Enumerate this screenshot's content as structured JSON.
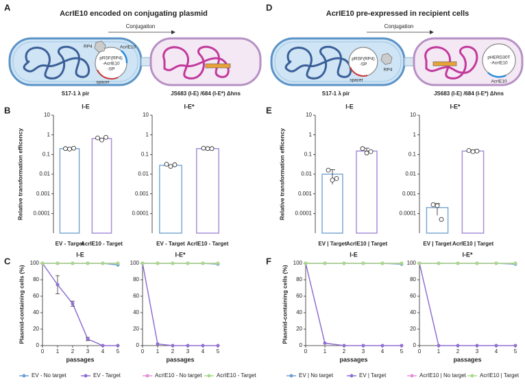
{
  "panels": [
    "A",
    "B",
    "C",
    "D",
    "E",
    "F"
  ],
  "diagrams": [
    {
      "title": "AcrIE10 encoded on conjugating plasmid",
      "arrow_label": "Conjugation",
      "donor": "S17-1 λ pir",
      "recipient": "JS683 (I-E) /684 (I-E*) Δhns",
      "helper": "RP4",
      "plasmid": [
        "pRSF(RP4)",
        "-AcrIE10",
        "-SP"
      ],
      "gene": "AcrIE10",
      "spacer": "spacer"
    },
    {
      "title": "AcrIE10 pre-expressed in recipient cells",
      "arrow_label": "Conjugation",
      "donor": "S17-1 λ pir",
      "recipient": "JS683 (I-E) /684 (I-E*) Δhns",
      "helper": "RP4",
      "plasmid": [
        "pRSF(RP4)",
        "-SP"
      ],
      "spacer": "spacer",
      "recipient_plasmid": [
        "pHERD30T",
        "-AcrIE10"
      ],
      "gene": "AcrIE10"
    }
  ],
  "chart_data": [
    {
      "type": "bar",
      "title": "I-E",
      "ylabel": "Relative transformation efficency",
      "log": true,
      "categories": [
        "EV - Target",
        "AcrIE10 - Target"
      ],
      "values": [
        0.2,
        0.65
      ],
      "points": [
        [
          0.2,
          0.19,
          0.21
        ],
        [
          0.7,
          0.55,
          0.75
        ]
      ],
      "colors": [
        "#7ba9d6",
        "#a68fd8"
      ],
      "ylim": [
        1e-05,
        10
      ],
      "yticks": [
        0.0001,
        0.001,
        0.01,
        0.1,
        1,
        10
      ]
    },
    {
      "type": "bar",
      "title": "I-E*",
      "log": true,
      "categories": [
        "EV - Target",
        "AcrIE10 - Target"
      ],
      "values": [
        0.028,
        0.2
      ],
      "points": [
        [
          0.032,
          0.025,
          0.03
        ],
        [
          0.21,
          0.2,
          0.2
        ]
      ],
      "colors": [
        "#7ba9d6",
        "#a68fd8"
      ],
      "ylim": [
        1e-05,
        10
      ],
      "yticks": [
        0.0001,
        0.001,
        0.01,
        0.1,
        1,
        10
      ]
    },
    {
      "type": "bar",
      "title": "I-E",
      "ylabel": "Relative transformation efficency",
      "log": true,
      "categories": [
        "EV | Target",
        "AcrIE10 | Target"
      ],
      "values": [
        0.01,
        0.15
      ],
      "errors": [
        0.007,
        0.06
      ],
      "points": [
        [
          0.016,
          0.005,
          0.006
        ],
        [
          0.2,
          0.12,
          0.14
        ]
      ],
      "colors": [
        "#7ba9d6",
        "#a68fd8"
      ],
      "ylim": [
        1e-05,
        10
      ],
      "yticks": [
        0.0001,
        0.001,
        0.01,
        0.1,
        1,
        10
      ]
    },
    {
      "type": "bar",
      "title": "I-E*",
      "log": true,
      "categories": [
        "EV | Target",
        "AcrIE10 | Target"
      ],
      "values": [
        0.0002,
        0.15
      ],
      "errors": [
        0.00012,
        0.02
      ],
      "points": [
        [
          0.00028,
          0.00025,
          5e-05
        ],
        [
          0.16,
          0.14,
          0.15
        ]
      ],
      "colors": [
        "#7ba9d6",
        "#a68fd8"
      ],
      "ylim": [
        1e-05,
        10
      ],
      "yticks": [
        0.0001,
        0.001,
        0.01,
        0.1,
        1,
        10
      ]
    },
    {
      "type": "line",
      "title": "I-E",
      "ylabel": "Plasmid-containing cells (%)",
      "xlabel": "passages",
      "legend": "bottom",
      "x": [
        0,
        1,
        2,
        3,
        4,
        5
      ],
      "xlim": [
        0,
        5
      ],
      "xticks": [
        0,
        1,
        2,
        3,
        4,
        5
      ],
      "ylim": [
        0,
        100
      ],
      "yticks": [
        0,
        20,
        40,
        60,
        80,
        100
      ],
      "series": [
        {
          "name": "EV - No target",
          "color": "#6e9fd4",
          "values": [
            100,
            100,
            100,
            100,
            100,
            98
          ]
        },
        {
          "name": "EV - Target",
          "color": "#8f6fd1",
          "values": [
            100,
            74,
            51,
            8,
            0,
            0
          ],
          "errors": [
            0,
            11,
            3,
            2,
            0,
            0
          ]
        },
        {
          "name": "AcrIE10 - No target",
          "color": "#e48fd8",
          "values": [
            100,
            100,
            100,
            100,
            100,
            100
          ]
        },
        {
          "name": "AcrIE10 - Target",
          "color": "#a8d98a",
          "values": [
            100,
            100,
            100,
            100,
            100,
            100
          ]
        }
      ]
    },
    {
      "type": "line",
      "title": "I-E*",
      "xlabel": "passages",
      "x": [
        0,
        1,
        2,
        3,
        4,
        5
      ],
      "xlim": [
        0,
        5
      ],
      "xticks": [
        0,
        1,
        2,
        3,
        4,
        5
      ],
      "ylim": [
        0,
        100
      ],
      "yticks": [
        0,
        20,
        40,
        60,
        80,
        100
      ],
      "series": [
        {
          "color": "#6e9fd4",
          "values": [
            100,
            100,
            100,
            100,
            100,
            99
          ]
        },
        {
          "color": "#8f6fd1",
          "values": [
            100,
            2,
            0,
            0,
            0,
            0
          ]
        },
        {
          "color": "#e48fd8",
          "values": [
            100,
            100,
            100,
            100,
            100,
            100
          ]
        },
        {
          "color": "#a8d98a",
          "values": [
            100,
            100,
            100,
            100,
            100,
            100
          ]
        }
      ]
    },
    {
      "type": "line",
      "title": "I-E",
      "ylabel": "Plasmid-containing cells (%)",
      "xlabel": "passages",
      "legend": "bottom",
      "x": [
        0,
        1,
        2,
        3,
        4,
        5
      ],
      "xlim": [
        0,
        5
      ],
      "xticks": [
        0,
        1,
        2,
        3,
        4,
        5
      ],
      "ylim": [
        0,
        100
      ],
      "yticks": [
        0,
        20,
        40,
        60,
        80,
        100
      ],
      "series": [
        {
          "name": "EV | No target",
          "color": "#6e9fd4",
          "values": [
            100,
            100,
            100,
            100,
            100,
            99
          ]
        },
        {
          "name": "EV | Target",
          "color": "#8f6fd1",
          "values": [
            100,
            3,
            0,
            0,
            0,
            0
          ]
        },
        {
          "name": "AcrIE10 | No target",
          "color": "#e48fd8",
          "values": [
            100,
            100,
            100,
            100,
            100,
            100
          ]
        },
        {
          "name": "AcrIE10 | Target",
          "color": "#a8d98a",
          "values": [
            100,
            100,
            100,
            100,
            100,
            100
          ]
        }
      ]
    },
    {
      "type": "line",
      "title": "I-E*",
      "xlabel": "passages",
      "x": [
        0,
        1,
        2,
        3,
        4,
        5
      ],
      "xlim": [
        0,
        5
      ],
      "xticks": [
        0,
        1,
        2,
        3,
        4,
        5
      ],
      "ylim": [
        0,
        100
      ],
      "yticks": [
        0,
        20,
        40,
        60,
        80,
        100
      ],
      "series": [
        {
          "color": "#6e9fd4",
          "values": [
            100,
            100,
            100,
            100,
            100,
            99
          ]
        },
        {
          "color": "#8f6fd1",
          "values": [
            100,
            0,
            0,
            0,
            0,
            0
          ]
        },
        {
          "color": "#e48fd8",
          "values": [
            100,
            100,
            100,
            100,
            100,
            100
          ]
        },
        {
          "color": "#a8d98a",
          "values": [
            100,
            100,
            100,
            100,
            100,
            100
          ]
        }
      ]
    }
  ]
}
